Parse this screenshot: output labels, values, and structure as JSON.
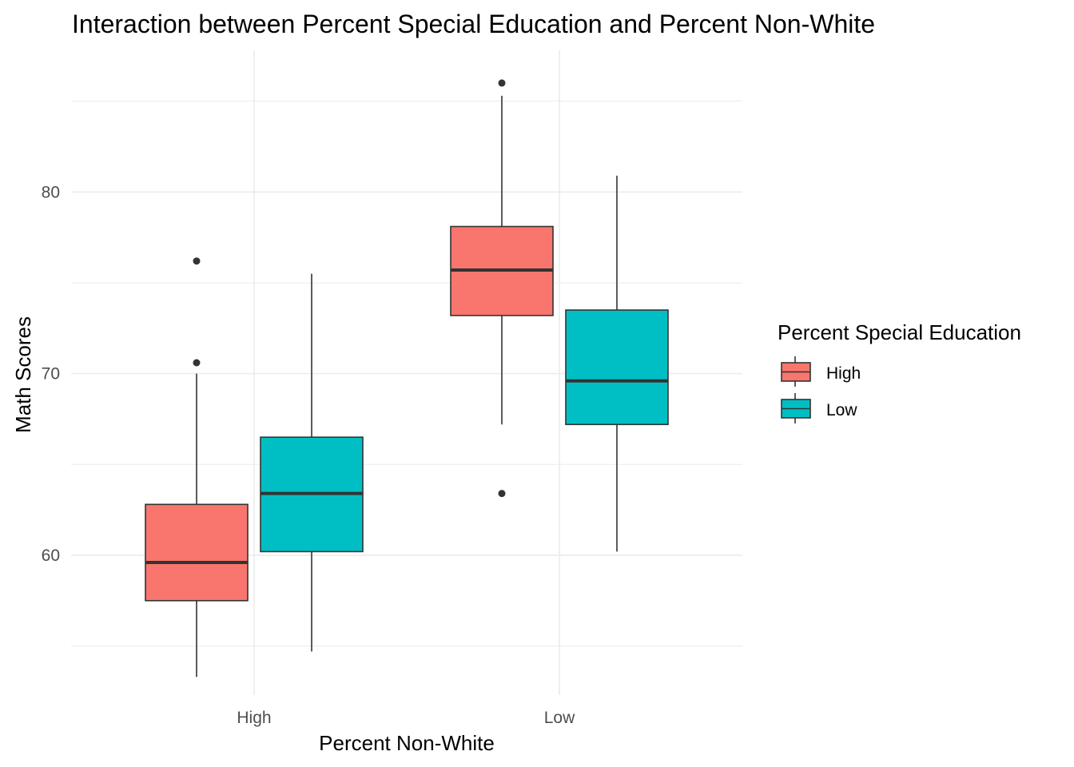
{
  "chart_data": {
    "type": "box",
    "title": "Interaction between Percent Special Education and Percent Non-White",
    "xlabel": "Percent Non-White",
    "ylabel": "Math Scores",
    "categories": [
      "High",
      "Low"
    ],
    "ylim": [
      52.3,
      87.8
    ],
    "yticks": [
      60,
      70,
      80
    ],
    "grid": true,
    "legend": {
      "title": "Percent Special Education",
      "placement": "right"
    },
    "series": [
      {
        "name": "High",
        "color": "#F8766D",
        "boxes": [
          {
            "category": "High",
            "whisker_low": 53.3,
            "q1": 57.5,
            "median": 59.6,
            "q3": 62.8,
            "whisker_high": 70.0,
            "outliers": [
              70.6,
              76.2
            ]
          },
          {
            "category": "Low",
            "whisker_low": 67.2,
            "q1": 73.2,
            "median": 75.7,
            "q3": 78.1,
            "whisker_high": 85.3,
            "outliers": [
              63.4,
              86.0
            ]
          }
        ]
      },
      {
        "name": "Low",
        "color": "#00BFC4",
        "boxes": [
          {
            "category": "High",
            "whisker_low": 54.7,
            "q1": 60.2,
            "median": 63.4,
            "q3": 66.5,
            "whisker_high": 75.5,
            "outliers": []
          },
          {
            "category": "Low",
            "whisker_low": 60.2,
            "q1": 67.2,
            "median": 69.6,
            "q3": 73.5,
            "whisker_high": 80.9,
            "outliers": []
          }
        ]
      }
    ]
  }
}
